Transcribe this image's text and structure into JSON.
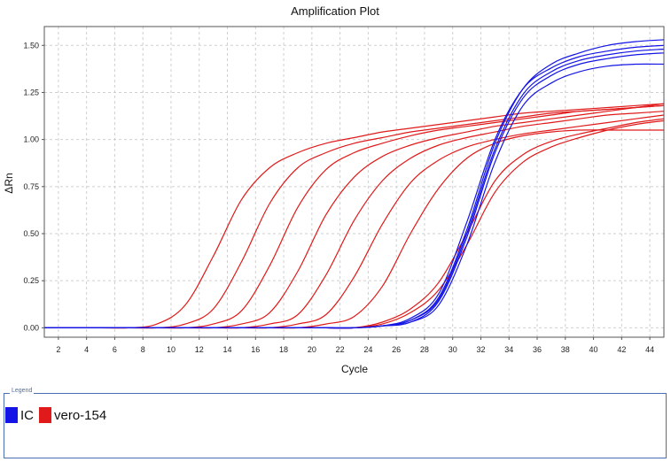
{
  "chart_data": {
    "type": "line",
    "title": "Amplification Plot",
    "xlabel": "Cycle",
    "ylabel": "ΔRn",
    "xlim": [
      1,
      45
    ],
    "ylim": [
      -0.05,
      1.6
    ],
    "x_ticks": [
      2,
      4,
      6,
      8,
      10,
      12,
      14,
      16,
      18,
      20,
      22,
      24,
      26,
      28,
      30,
      32,
      34,
      36,
      38,
      40,
      42,
      44
    ],
    "y_ticks": [
      "0.00",
      "0.25",
      "0.50",
      "0.75",
      "1.00",
      "1.25",
      "1.50"
    ],
    "grid": true,
    "legend_position": "bottom",
    "x": [
      1,
      3,
      5,
      7,
      9,
      11,
      13,
      15,
      17,
      19,
      21,
      23,
      25,
      27,
      29,
      31,
      33,
      35,
      37,
      39,
      41,
      43,
      45
    ],
    "series": [
      {
        "name": "IC",
        "color": "#1414e6",
        "values": [
          0,
          0,
          0,
          0,
          0,
          0,
          0,
          0,
          0,
          0,
          0,
          0,
          0.01,
          0.04,
          0.15,
          0.5,
          0.95,
          1.24,
          1.36,
          1.42,
          1.45,
          1.47,
          1.48
        ]
      },
      {
        "name": "IC",
        "color": "#1414e6",
        "values": [
          0,
          0,
          0,
          0,
          0,
          0,
          0,
          0,
          0,
          0,
          0,
          0,
          0.01,
          0.05,
          0.18,
          0.56,
          1.0,
          1.27,
          1.38,
          1.44,
          1.47,
          1.49,
          1.5
        ]
      },
      {
        "name": "IC",
        "color": "#1414e6",
        "values": [
          0,
          0,
          0,
          0,
          0,
          0,
          0,
          0,
          0,
          0,
          0,
          0,
          0.01,
          0.03,
          0.12,
          0.44,
          0.88,
          1.18,
          1.3,
          1.36,
          1.39,
          1.4,
          1.4
        ]
      },
      {
        "name": "IC",
        "color": "#1414e6",
        "values": [
          0,
          0,
          0,
          0,
          0,
          0,
          0,
          0,
          0,
          0,
          0,
          0,
          0.01,
          0.04,
          0.16,
          0.52,
          0.98,
          1.27,
          1.4,
          1.46,
          1.5,
          1.52,
          1.53
        ]
      },
      {
        "name": "IC",
        "color": "#1414e6",
        "values": [
          0,
          0,
          0,
          0,
          0,
          0,
          0,
          0,
          0,
          0,
          0,
          0,
          0.01,
          0.03,
          0.14,
          0.48,
          0.93,
          1.22,
          1.34,
          1.4,
          1.43,
          1.45,
          1.46
        ]
      },
      {
        "name": "vero-154",
        "color": "#e01a1a",
        "values": [
          0,
          0,
          0,
          0,
          0.02,
          0.12,
          0.38,
          0.68,
          0.85,
          0.93,
          0.98,
          1.01,
          1.04,
          1.06,
          1.08,
          1.1,
          1.12,
          1.14,
          1.15,
          1.16,
          1.17,
          1.18,
          1.19
        ]
      },
      {
        "name": "vero-154",
        "color": "#e01a1a",
        "values": [
          0,
          0,
          0,
          0,
          0,
          0.02,
          0.1,
          0.35,
          0.66,
          0.85,
          0.93,
          0.98,
          1.01,
          1.04,
          1.06,
          1.08,
          1.1,
          1.12,
          1.14,
          1.15,
          1.16,
          1.17,
          1.18
        ]
      },
      {
        "name": "vero-154",
        "color": "#e01a1a",
        "values": [
          0,
          0,
          0,
          0,
          0,
          0,
          0.02,
          0.09,
          0.33,
          0.64,
          0.84,
          0.93,
          0.98,
          1.02,
          1.05,
          1.07,
          1.09,
          1.11,
          1.13,
          1.15,
          1.16,
          1.17,
          1.18
        ]
      },
      {
        "name": "vero-154",
        "color": "#e01a1a",
        "values": [
          0,
          0,
          0,
          0,
          0,
          0,
          0,
          0.02,
          0.08,
          0.3,
          0.6,
          0.8,
          0.91,
          0.97,
          1.01,
          1.04,
          1.07,
          1.09,
          1.11,
          1.13,
          1.15,
          1.17,
          1.19
        ]
      },
      {
        "name": "vero-154",
        "color": "#e01a1a",
        "values": [
          0,
          0,
          0,
          0,
          0,
          0,
          0,
          0,
          0.02,
          0.07,
          0.28,
          0.57,
          0.78,
          0.9,
          0.97,
          1.01,
          1.04,
          1.07,
          1.09,
          1.11,
          1.13,
          1.14,
          1.15
        ]
      },
      {
        "name": "vero-154",
        "color": "#e01a1a",
        "values": [
          0,
          0,
          0,
          0,
          0,
          0,
          0,
          0,
          0,
          0.02,
          0.07,
          0.27,
          0.55,
          0.77,
          0.89,
          0.96,
          1.0,
          1.03,
          1.05,
          1.07,
          1.09,
          1.11,
          1.13
        ]
      },
      {
        "name": "vero-154",
        "color": "#e01a1a",
        "values": [
          0,
          0,
          0,
          0,
          0,
          0,
          0,
          0,
          0,
          0,
          0.02,
          0.06,
          0.22,
          0.5,
          0.74,
          0.9,
          0.98,
          1.02,
          1.04,
          1.05,
          1.05,
          1.05,
          1.05
        ]
      },
      {
        "name": "vero-154",
        "color": "#e01a1a",
        "values": [
          0,
          0,
          0,
          0,
          0,
          0,
          0,
          0,
          0,
          0,
          0,
          0,
          0.03,
          0.1,
          0.24,
          0.5,
          0.78,
          0.92,
          0.99,
          1.03,
          1.06,
          1.09,
          1.11
        ]
      },
      {
        "name": "vero-154",
        "color": "#e01a1a",
        "values": [
          0,
          0,
          0,
          0,
          0,
          0,
          0,
          0,
          0,
          0,
          0,
          0,
          0.02,
          0.08,
          0.2,
          0.44,
          0.72,
          0.88,
          0.96,
          1.01,
          1.05,
          1.08,
          1.1
        ]
      }
    ]
  },
  "legend": {
    "caption": "Legend",
    "items": [
      {
        "label": "IC",
        "color": "#1414e6"
      },
      {
        "label": "vero-154",
        "color": "#e01a1a"
      }
    ]
  }
}
